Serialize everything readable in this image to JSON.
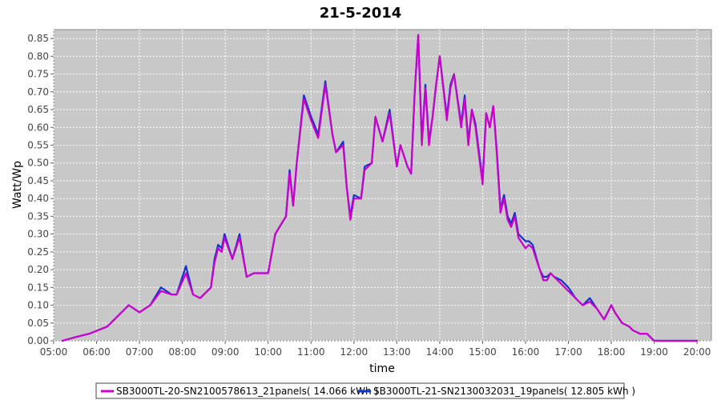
{
  "chart_data": {
    "type": "line",
    "title": "21-5-2014",
    "xlabel": "time",
    "ylabel": "Watt/Wp",
    "xlim": [
      "05:00",
      "20:20"
    ],
    "ylim": [
      0,
      0.875
    ],
    "grid": true,
    "legend_position": "bottom",
    "xticks": [
      "05:00",
      "06:00",
      "07:00",
      "08:00",
      "09:00",
      "10:00",
      "11:00",
      "12:00",
      "13:00",
      "14:00",
      "15:00",
      "16:00",
      "17:00",
      "18:00",
      "19:00",
      "20:00"
    ],
    "yticks": [
      "0.00",
      "0.05",
      "0.10",
      "0.15",
      "0.20",
      "0.25",
      "0.30",
      "0.35",
      "0.40",
      "0.45",
      "0.50",
      "0.55",
      "0.60",
      "0.65",
      "0.70",
      "0.75",
      "0.80",
      "0.85"
    ],
    "colors": {
      "plot_background": "#c8c8c8",
      "grid": "#ffffff"
    },
    "x": [
      "05:12",
      "05:30",
      "05:50",
      "06:15",
      "06:30",
      "06:45",
      "07:00",
      "07:15",
      "07:30",
      "07:45",
      "07:52",
      "08:05",
      "08:15",
      "08:25",
      "08:30",
      "08:40",
      "08:45",
      "08:50",
      "08:55",
      "08:59",
      "09:10",
      "09:20",
      "09:30",
      "09:40",
      "09:50",
      "10:00",
      "10:10",
      "10:25",
      "10:30",
      "10:35",
      "10:40",
      "10:50",
      "11:00",
      "11:10",
      "11:20",
      "11:30",
      "11:35",
      "11:45",
      "11:50",
      "11:55",
      "12:00",
      "12:10",
      "12:15",
      "12:25",
      "12:30",
      "12:40",
      "12:50",
      "13:00",
      "13:05",
      "13:15",
      "13:20",
      "13:25",
      "13:30",
      "13:35",
      "13:40",
      "13:45",
      "13:50",
      "13:55",
      "14:00",
      "14:10",
      "14:15",
      "14:20",
      "14:30",
      "14:35",
      "14:40",
      "14:45",
      "14:50",
      "15:00",
      "15:05",
      "15:10",
      "15:15",
      "15:20",
      "15:25",
      "15:30",
      "15:35",
      "15:40",
      "15:45",
      "15:50",
      "16:00",
      "16:05",
      "16:10",
      "16:20",
      "16:25",
      "16:30",
      "16:35",
      "16:40",
      "16:50",
      "17:00",
      "17:10",
      "17:15",
      "17:20",
      "17:30",
      "17:40",
      "17:50",
      "18:00",
      "18:05",
      "18:15",
      "18:25",
      "18:30",
      "18:40",
      "18:50",
      "18:55",
      "19:00",
      "19:10",
      "19:20",
      "19:30",
      "19:40",
      "19:50",
      "19:55",
      "20:00"
    ],
    "series": [
      {
        "name": "SB3000TL-20-SN2100578613_21panels( 14.066 kWh )",
        "color": "#cc00cc",
        "values": [
          0.0,
          0.01,
          0.02,
          0.04,
          0.07,
          0.1,
          0.08,
          0.1,
          0.14,
          0.13,
          0.13,
          0.19,
          0.13,
          0.12,
          0.13,
          0.15,
          0.22,
          0.26,
          0.25,
          0.29,
          0.23,
          0.29,
          0.18,
          0.19,
          0.19,
          0.19,
          0.3,
          0.35,
          0.47,
          0.38,
          0.5,
          0.68,
          0.62,
          0.57,
          0.72,
          0.58,
          0.53,
          0.55,
          0.43,
          0.34,
          0.4,
          0.4,
          0.48,
          0.5,
          0.63,
          0.56,
          0.64,
          0.49,
          0.55,
          0.49,
          0.47,
          0.7,
          0.86,
          0.55,
          0.71,
          0.55,
          0.63,
          0.72,
          0.8,
          0.62,
          0.71,
          0.75,
          0.6,
          0.68,
          0.55,
          0.65,
          0.6,
          0.44,
          0.64,
          0.6,
          0.66,
          0.52,
          0.36,
          0.4,
          0.34,
          0.32,
          0.35,
          0.29,
          0.26,
          0.27,
          0.26,
          0.2,
          0.17,
          0.17,
          0.19,
          0.18,
          0.16,
          0.14,
          0.12,
          0.11,
          0.1,
          0.11,
          0.09,
          0.06,
          0.1,
          0.08,
          0.05,
          0.04,
          0.03,
          0.02,
          0.02,
          0.01,
          0.0,
          0.0,
          0.0,
          0.0,
          0.0,
          0.0,
          0.0,
          0.0
        ]
      },
      {
        "name": "SB3000TL-21-SN2130032031_19panels( 12.805 kWh )",
        "color": "#1133cc",
        "values": [
          0.0,
          0.01,
          0.02,
          0.04,
          0.07,
          0.1,
          0.08,
          0.1,
          0.15,
          0.13,
          0.13,
          0.21,
          0.13,
          0.12,
          0.13,
          0.15,
          0.23,
          0.27,
          0.26,
          0.3,
          0.23,
          0.3,
          0.18,
          0.19,
          0.19,
          0.19,
          0.3,
          0.35,
          0.48,
          0.38,
          0.5,
          0.69,
          0.63,
          0.58,
          0.73,
          0.58,
          0.53,
          0.56,
          0.43,
          0.35,
          0.41,
          0.4,
          0.49,
          0.5,
          0.63,
          0.56,
          0.65,
          0.49,
          0.55,
          0.49,
          0.47,
          0.7,
          0.86,
          0.56,
          0.72,
          0.56,
          0.63,
          0.72,
          0.8,
          0.63,
          0.72,
          0.75,
          0.61,
          0.69,
          0.56,
          0.65,
          0.61,
          0.45,
          0.64,
          0.6,
          0.66,
          0.53,
          0.37,
          0.41,
          0.35,
          0.33,
          0.36,
          0.3,
          0.28,
          0.28,
          0.27,
          0.2,
          0.18,
          0.18,
          0.19,
          0.18,
          0.17,
          0.15,
          0.12,
          0.11,
          0.1,
          0.12,
          0.09,
          0.06,
          0.1,
          0.08,
          0.05,
          0.04,
          0.03,
          0.02,
          0.02,
          0.01,
          0.0,
          0.0,
          0.0,
          0.0,
          0.0,
          0.0,
          0.0,
          0.0
        ]
      }
    ],
    "legend": [
      {
        "label": "SB3000TL-20-SN2100578613_21panels( 14.066 kWh )",
        "color": "#cc00cc"
      },
      {
        "label": "SB3000TL-21-SN2130032031_19panels( 12.805 kWh )",
        "color": "#1133cc"
      }
    ]
  }
}
